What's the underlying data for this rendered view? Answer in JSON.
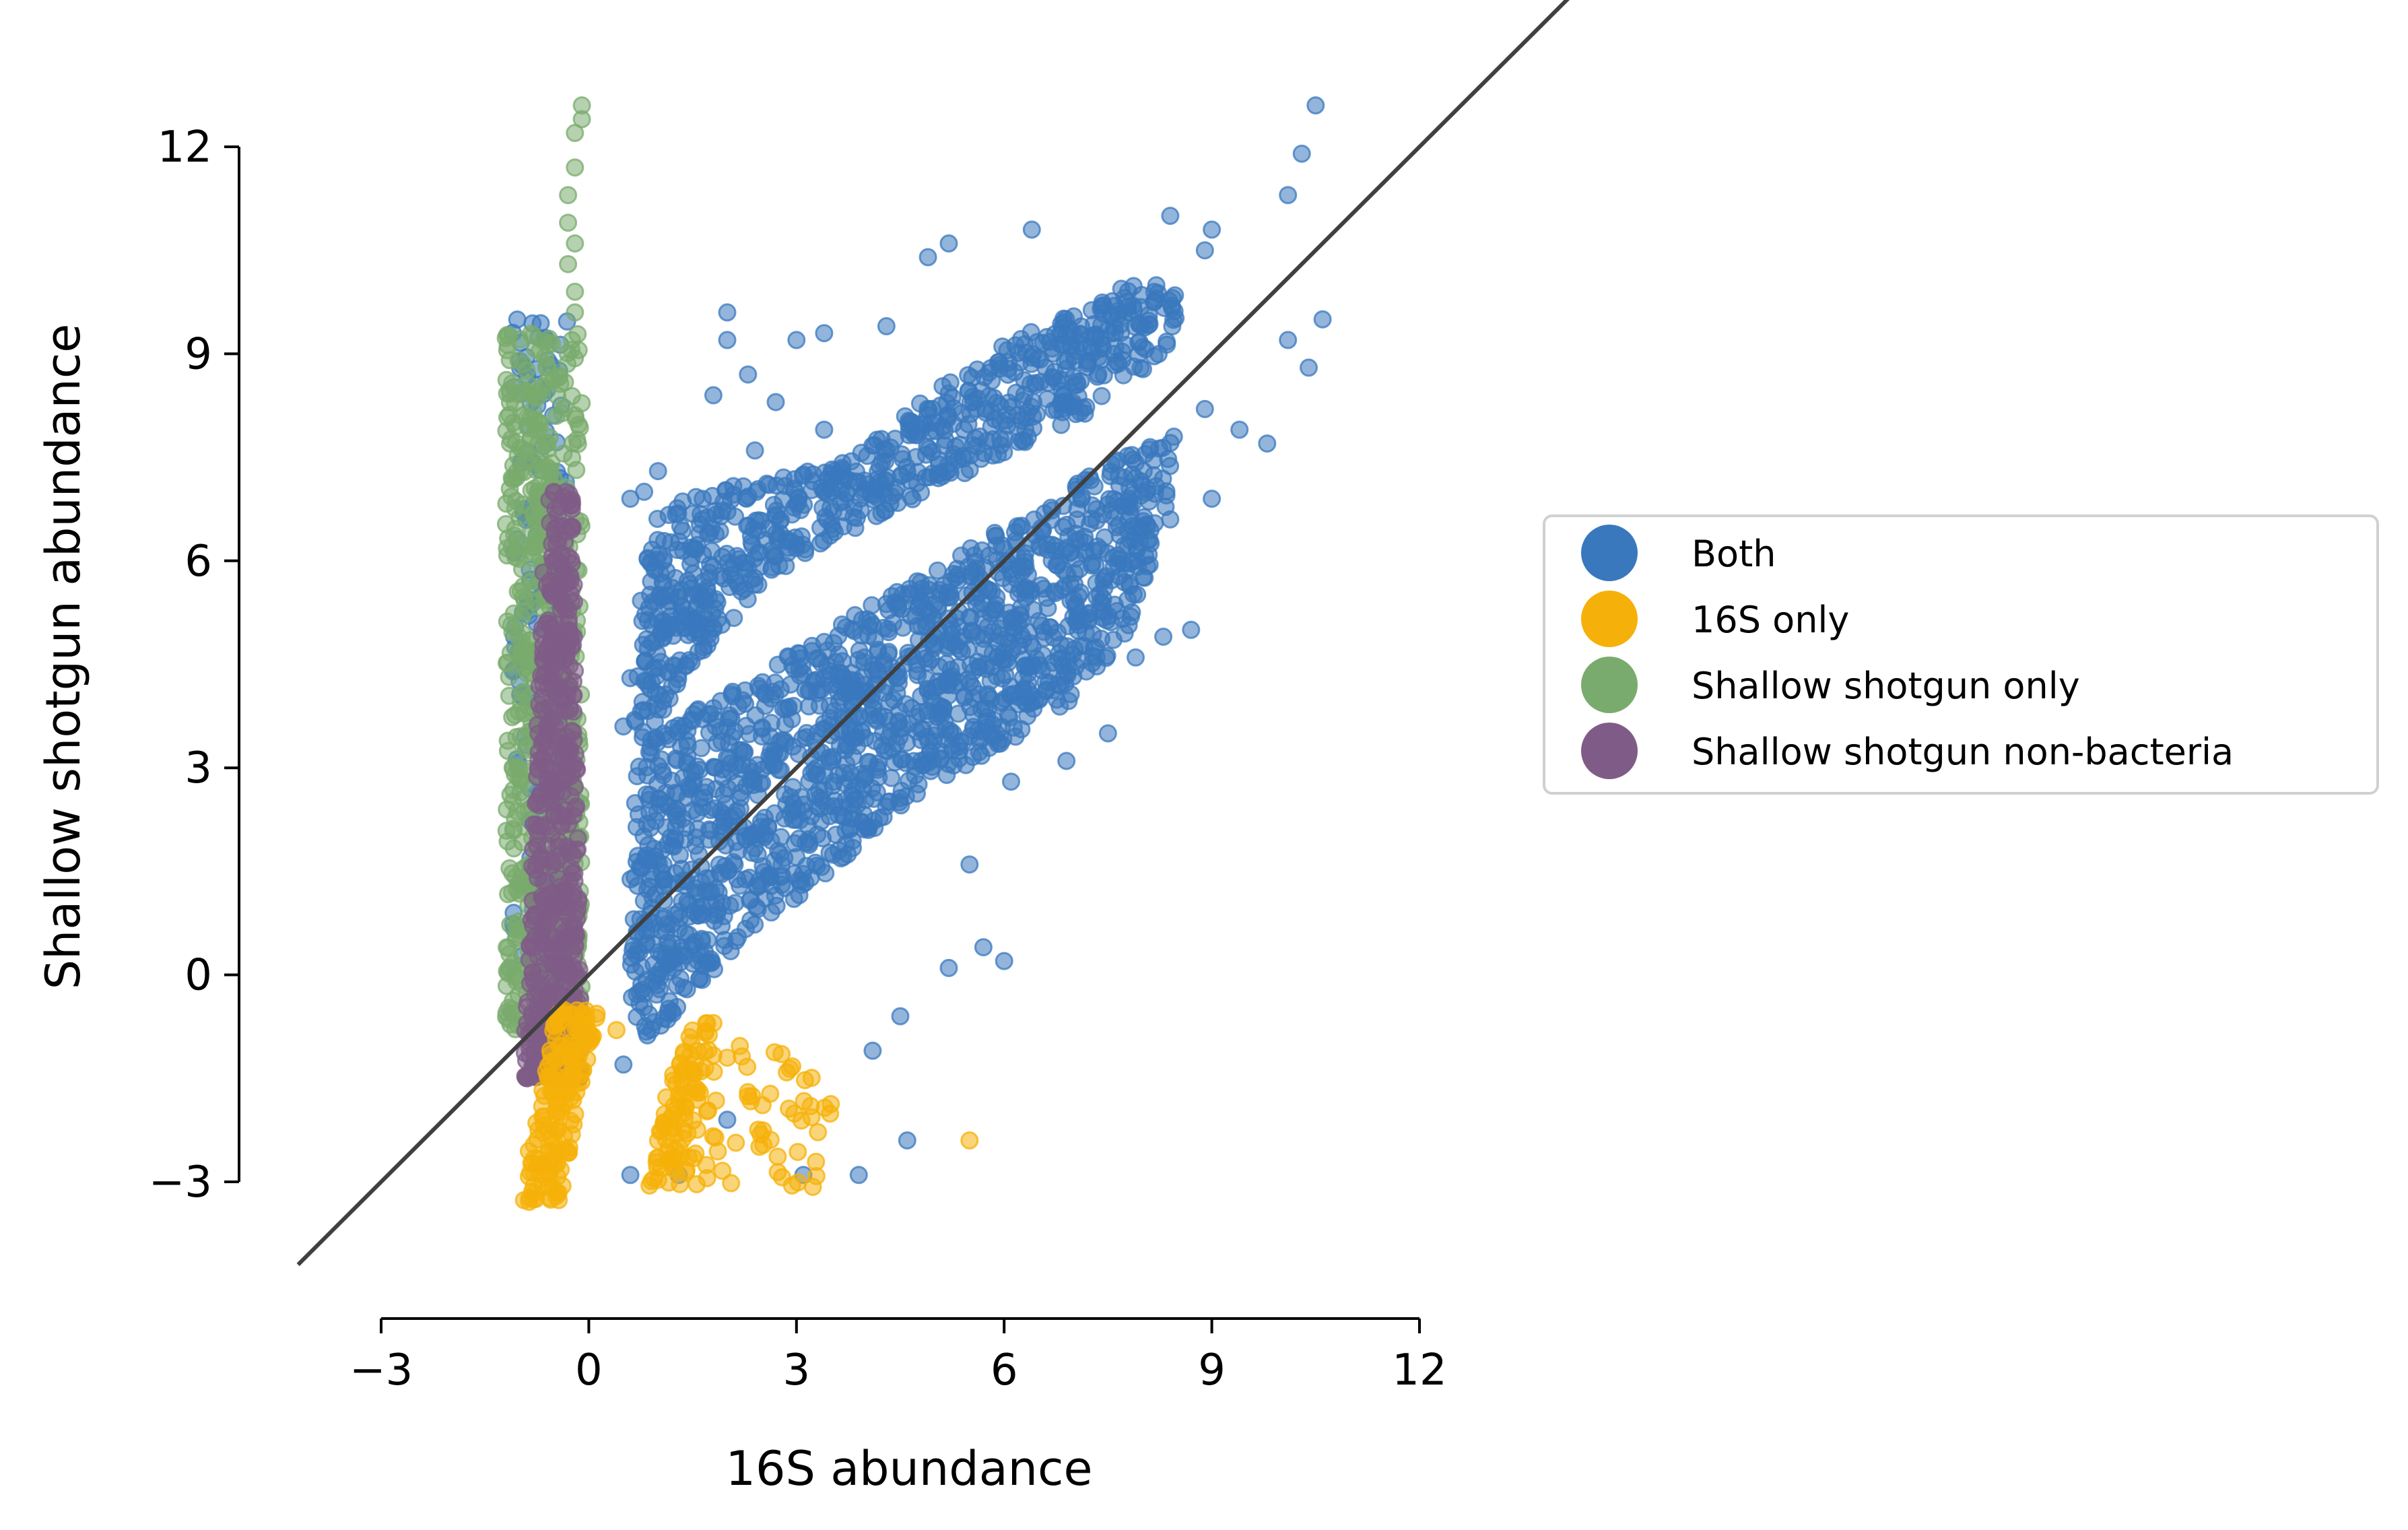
{
  "chart_data": {
    "type": "scatter",
    "title": "",
    "xlabel": "16S abundance",
    "ylabel": "Shallow shotgun abundance",
    "xlim": [
      -4.0,
      14.5
    ],
    "ylim": [
      -4.2,
      13.5
    ],
    "x_ticks": [
      -3,
      0,
      3,
      6,
      9,
      12
    ],
    "y_ticks": [
      -3,
      0,
      3,
      6,
      9,
      12
    ],
    "x_tick_labels": [
      "−3",
      "0",
      "3",
      "6",
      "9",
      "12"
    ],
    "y_tick_labels": [
      "−3",
      "0",
      "3",
      "6",
      "9",
      "12"
    ],
    "grid": false,
    "legend_position": "right",
    "reference_line": {
      "slope": 1,
      "intercept": 0,
      "color": "#404040"
    },
    "series": [
      {
        "name": "Both",
        "color": "#3a78be",
        "approx_count": 2600,
        "points": [
          [
            10.5,
            12.6
          ],
          [
            10.3,
            11.9
          ],
          [
            10.1,
            11.3
          ],
          [
            9.0,
            10.8
          ],
          [
            8.9,
            10.5
          ],
          [
            8.4,
            11.0
          ],
          [
            6.4,
            10.8
          ],
          [
            5.2,
            10.6
          ],
          [
            4.9,
            10.4
          ],
          [
            4.3,
            9.4
          ],
          [
            3.0,
            9.2
          ],
          [
            3.4,
            9.3
          ],
          [
            2.0,
            9.6
          ],
          [
            2.0,
            9.2
          ],
          [
            2.3,
            8.7
          ],
          [
            1.8,
            8.4
          ],
          [
            2.7,
            8.3
          ],
          [
            3.4,
            7.9
          ],
          [
            2.4,
            7.6
          ],
          [
            1.0,
            7.3
          ],
          [
            0.8,
            7.0
          ],
          [
            0.6,
            6.9
          ],
          [
            10.6,
            9.5
          ],
          [
            10.4,
            8.8
          ],
          [
            10.1,
            9.2
          ],
          [
            9.8,
            7.7
          ],
          [
            9.4,
            7.9
          ],
          [
            8.9,
            8.2
          ],
          [
            9.0,
            6.9
          ],
          [
            8.4,
            6.6
          ],
          [
            8.1,
            6.3
          ],
          [
            8.7,
            5.0
          ],
          [
            8.3,
            4.9
          ],
          [
            7.9,
            4.6
          ],
          [
            6.5,
            4.0
          ],
          [
            7.5,
            3.5
          ],
          [
            6.9,
            3.1
          ],
          [
            6.1,
            2.8
          ],
          [
            5.5,
            1.6
          ],
          [
            5.7,
            0.4
          ],
          [
            6.0,
            0.2
          ],
          [
            5.2,
            0.1
          ],
          [
            4.5,
            -0.6
          ],
          [
            4.1,
            -1.1
          ],
          [
            4.6,
            -2.4
          ],
          [
            3.9,
            -2.9
          ],
          [
            3.1,
            -2.9
          ],
          [
            2.0,
            -2.1
          ],
          [
            1.3,
            -2.9
          ],
          [
            0.6,
            -2.9
          ],
          [
            0.5,
            -1.3
          ],
          [
            0.7,
            0.6
          ],
          [
            0.9,
            3.4
          ],
          [
            0.5,
            3.6
          ],
          [
            0.9,
            5.7
          ],
          [
            0.6,
            4.3
          ]
        ],
        "dense_region": [
          [
            0.8,
            3.4
          ],
          [
            1.5,
            4.5
          ],
          [
            2.5,
            5.6
          ],
          [
            3.5,
            6.3
          ],
          [
            4.5,
            6.8
          ],
          [
            5.5,
            7.3
          ],
          [
            6.5,
            7.8
          ],
          [
            7.5,
            8.3
          ],
          [
            8.3,
            9.0
          ],
          [
            8.6,
            9.8
          ],
          [
            8.0,
            10.1
          ],
          [
            7.2,
            9.7
          ],
          [
            6.0,
            9.2
          ],
          [
            4.8,
            8.3
          ],
          [
            3.6,
            7.4
          ],
          [
            2.6,
            7.2
          ],
          [
            1.6,
            7.0
          ],
          [
            0.9,
            6.6
          ],
          [
            0.7,
            5.0
          ],
          [
            0.6,
            2.0
          ],
          [
            0.6,
            -0.5
          ],
          [
            0.9,
            -1.0
          ],
          [
            1.4,
            -0.4
          ],
          [
            2.0,
            0.3
          ],
          [
            2.9,
            1.0
          ],
          [
            3.5,
            1.5
          ],
          [
            4.2,
            2.2
          ],
          [
            5.0,
            2.8
          ],
          [
            6.0,
            3.3
          ],
          [
            7.0,
            4.0
          ],
          [
            7.8,
            5.0
          ],
          [
            8.3,
            6.5
          ],
          [
            8.5,
            8.0
          ]
        ],
        "column_region": [
          [
            -1.1,
            0.2
          ],
          [
            -0.3,
            9.5
          ]
        ]
      },
      {
        "name": "16S only",
        "color": "#f5b10a",
        "approx_count": 320,
        "clusters": [
          {
            "x": [
              -1.1,
              0.0
            ],
            "y": [
              -3.3,
              -0.5
            ]
          },
          {
            "x": [
              0.8,
              1.7
            ],
            "y": [
              -3.1,
              -0.7
            ]
          },
          {
            "x": [
              1.5,
              3.5
            ],
            "y": [
              -3.2,
              -1.0
            ]
          }
        ],
        "points": [
          [
            5.5,
            -2.4
          ],
          [
            0.4,
            -0.8
          ],
          [
            2.0,
            -1.2
          ],
          [
            1.8,
            -0.7
          ]
        ]
      },
      {
        "name": "Shallow shotgun only",
        "color": "#7aab6e",
        "approx_count": 700,
        "clusters": [
          {
            "x": [
              -1.2,
              -0.1
            ],
            "y": [
              -0.8,
              9.3
            ]
          }
        ],
        "points": [
          [
            -0.1,
            12.6
          ],
          [
            -0.1,
            12.4
          ],
          [
            -0.2,
            12.2
          ],
          [
            -0.2,
            11.7
          ],
          [
            -0.3,
            11.3
          ],
          [
            -0.3,
            10.9
          ],
          [
            -0.2,
            10.6
          ],
          [
            -0.3,
            10.3
          ],
          [
            -0.2,
            9.9
          ],
          [
            -0.2,
            9.6
          ]
        ]
      },
      {
        "name": "Shallow shotgun non-bacteria",
        "color": "#7f5c87",
        "approx_count": 600,
        "clusters": [
          {
            "x": [
              -0.95,
              -0.1
            ],
            "y": [
              -1.5,
              7.0
            ]
          }
        ],
        "points": []
      }
    ]
  }
}
